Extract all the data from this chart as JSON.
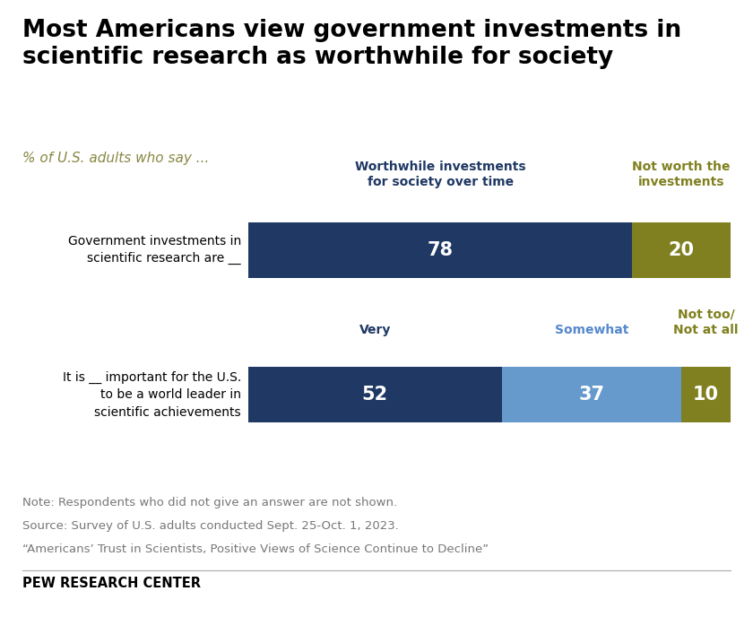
{
  "title": "Most Americans view government investments in\nscientific research as worthwhile for society",
  "subtitle": "% of U.S. adults who say ...",
  "background_color": "#ffffff",
  "row1": {
    "label": "Government investments in\nscientific research are __",
    "bars": [
      78,
      20
    ],
    "colors": [
      "#1f3864",
      "#808020"
    ],
    "header_labels": [
      "Worthwhile investments\nfor society over time",
      "Not worth the\ninvestments"
    ],
    "header_colors": [
      "#1f3864",
      "#808020"
    ]
  },
  "row2": {
    "label": "It is __ important for the U.S.\nto be a world leader in\nscientific achievements",
    "bars": [
      52,
      37,
      10
    ],
    "colors": [
      "#1f3864",
      "#6699cc",
      "#808020"
    ],
    "header_labels": [
      "Very",
      "Somewhat",
      "Not too/\nNot at all"
    ],
    "header_colors": [
      "#1f3864",
      "#5588cc",
      "#808020"
    ]
  },
  "note_lines": [
    "Note: Respondents who did not give an answer are not shown.",
    "Source: Survey of U.S. adults conducted Sept. 25-Oct. 1, 2023.",
    "“Americans’ Trust in Scientists, Positive Views of Science Continue to Decline”"
  ],
  "footer": "PEW RESEARCH CENTER",
  "label_fontsize": 10,
  "value_fontsize": 15,
  "header_fontsize": 10,
  "note_fontsize": 9.5,
  "footer_fontsize": 10.5,
  "title_fontsize": 19,
  "subtitle_fontsize": 11,
  "subtitle_color": "#888844",
  "note_color": "#777777",
  "footer_color": "#000000",
  "bar_label_color": "#ffffff"
}
